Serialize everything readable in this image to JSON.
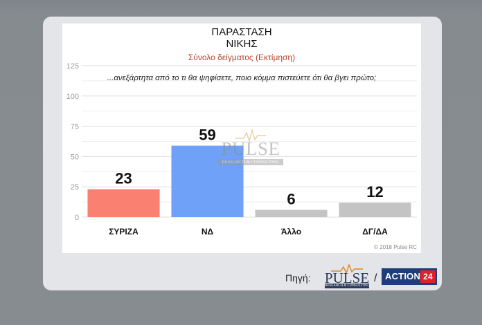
{
  "source": {
    "label": "Πηγή:",
    "logo_text": "PULSE",
    "logo_sub": "RESEARCH & CONSULTING",
    "separator": "/",
    "action_text": "ACTION",
    "action_num": "24"
  },
  "watermark": {
    "text": "PULSE",
    "sub": "RESEARCH & CONSULTING"
  },
  "chart_data": {
    "type": "bar",
    "title_lines": [
      "ΠΑΡΑΣΤΑΣΗ",
      "ΝΙΚΗΣ"
    ],
    "subtitle": "Σύνολο δείγματος   (Εκτίμηση)",
    "question": "...ανεξάρτητα από το τι θα ψηφίσετε, ποιο κόμμα πιστεύετε ότι θα βγει πρώτο;",
    "categories": [
      "ΣΥΡΙΖΑ",
      "ΝΔ",
      "Άλλο",
      "ΔΓ/ΔΑ"
    ],
    "values": [
      23,
      59,
      6,
      12
    ],
    "colors": [
      "#fa8072",
      "#6ea1f7",
      "#c4c4c4",
      "#c4c4c4"
    ],
    "ylim": [
      0,
      125
    ],
    "yticks": [
      0,
      25,
      50,
      75,
      100,
      125
    ],
    "grid": true,
    "credit": "© 2018 Pulse RC"
  }
}
